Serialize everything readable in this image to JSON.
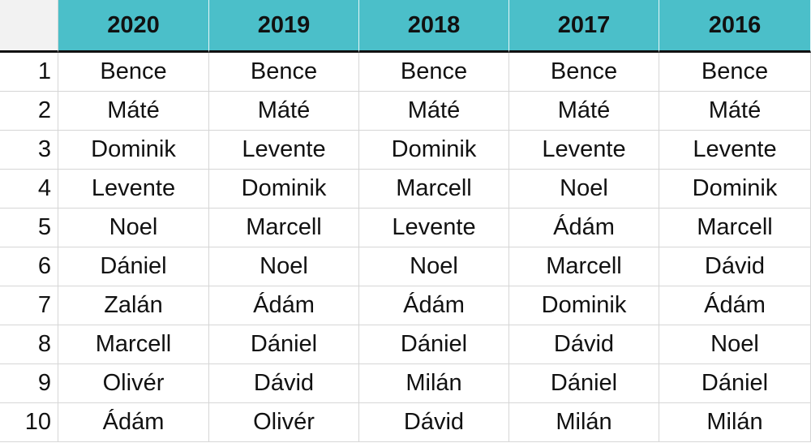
{
  "table": {
    "columns": [
      "2020",
      "2019",
      "2018",
      "2017",
      "2016"
    ],
    "rows": [
      [
        "1",
        "Bence",
        "Bence",
        "Bence",
        "Bence",
        "Bence"
      ],
      [
        "2",
        "Máté",
        "Máté",
        "Máté",
        "Máté",
        "Máté"
      ],
      [
        "3",
        "Dominik",
        "Levente",
        "Dominik",
        "Levente",
        "Levente"
      ],
      [
        "4",
        "Levente",
        "Dominik",
        "Marcell",
        "Noel",
        "Dominik"
      ],
      [
        "5",
        "Noel",
        "Marcell",
        "Levente",
        "Ádám",
        "Marcell"
      ],
      [
        "6",
        "Dániel",
        "Noel",
        "Noel",
        "Marcell",
        "Dávid"
      ],
      [
        "7",
        "Zalán",
        "Ádám",
        "Ádám",
        "Dominik",
        "Ádám"
      ],
      [
        "8",
        "Marcell",
        "Dániel",
        "Dániel",
        "Dávid",
        "Noel"
      ],
      [
        "9",
        "Olivér",
        "Dávid",
        "Milán",
        "Dániel",
        "Dániel"
      ],
      [
        "10",
        "Ádám",
        "Olivér",
        "Dávid",
        "Milán",
        "Milán"
      ]
    ]
  }
}
